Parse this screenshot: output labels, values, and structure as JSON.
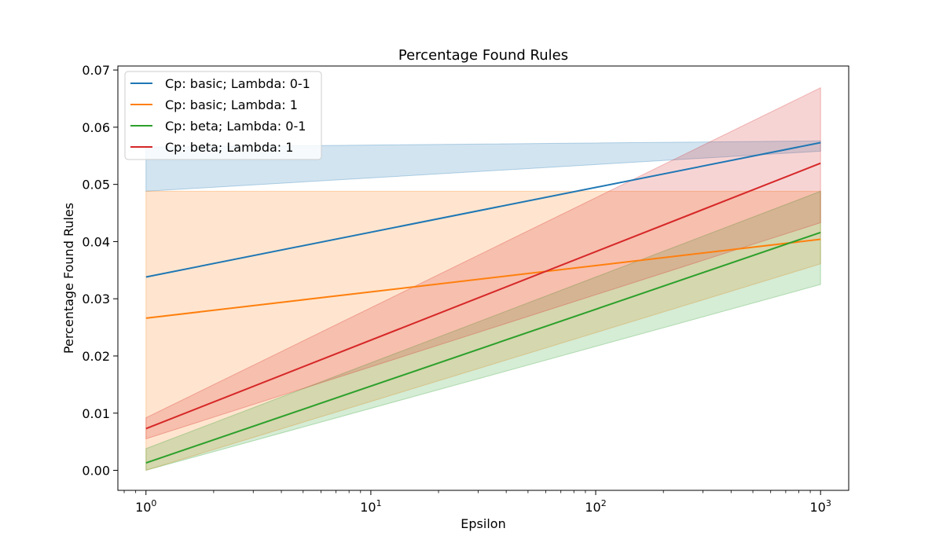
{
  "chart_data": {
    "type": "line",
    "title": "Percentage Found Rules",
    "xlabel": "Epsilon",
    "ylabel": "Percentage Found Rules",
    "x_scale": "log",
    "x": [
      1,
      1000
    ],
    "xlim": [
      0.75,
      1334
    ],
    "ylim": [
      -0.0035,
      0.0707
    ],
    "x_ticks": [
      {
        "value": 1,
        "base": "10",
        "exp": "0"
      },
      {
        "value": 10,
        "base": "10",
        "exp": "1"
      },
      {
        "value": 100,
        "base": "10",
        "exp": "2"
      },
      {
        "value": 1000,
        "base": "10",
        "exp": "3"
      }
    ],
    "y_ticks": [
      {
        "value": 0.0,
        "label": "0.00"
      },
      {
        "value": 0.01,
        "label": "0.01"
      },
      {
        "value": 0.02,
        "label": "0.02"
      },
      {
        "value": 0.03,
        "label": "0.03"
      },
      {
        "value": 0.04,
        "label": "0.04"
      },
      {
        "value": 0.05,
        "label": "0.05"
      },
      {
        "value": 0.06,
        "label": "0.06"
      },
      {
        "value": 0.07,
        "label": "0.07"
      }
    ],
    "grid": false,
    "legend_position": "top-left",
    "series": [
      {
        "name": "Cp: basic; Lambda: 0-1",
        "color": "#1f77b4",
        "values": [
          0.0338,
          0.0573
        ],
        "ci_lower": [
          0.0488,
          0.0558
        ],
        "ci_upper": [
          0.0565,
          0.0576
        ]
      },
      {
        "name": "Cp: basic; Lambda: 1",
        "color": "#ff7f0e",
        "values": [
          0.0266,
          0.0404
        ],
        "ci_lower": [
          0.0,
          0.0361
        ],
        "ci_upper": [
          0.0488,
          0.0488
        ]
      },
      {
        "name": "Cp: beta; Lambda: 0-1",
        "color": "#2ca02c",
        "values": [
          0.0013,
          0.0416
        ],
        "ci_lower": [
          0.0,
          0.0325
        ],
        "ci_upper": [
          0.0038,
          0.0488
        ]
      },
      {
        "name": "Cp: beta; Lambda: 1",
        "color": "#d62728",
        "values": [
          0.0073,
          0.0537
        ],
        "ci_lower": [
          0.0055,
          0.0433
        ],
        "ci_upper": [
          0.0092,
          0.0669
        ]
      }
    ]
  }
}
